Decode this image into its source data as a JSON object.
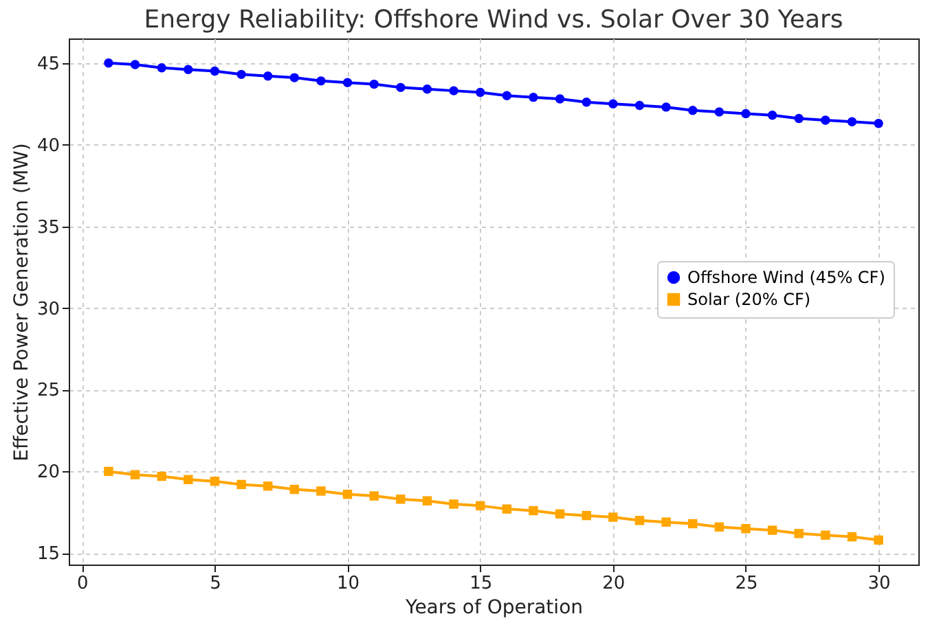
{
  "chart_data": {
    "type": "line",
    "title": "Energy Reliability: Offshore Wind vs. Solar Over 30 Years",
    "xlabel": "Years of Operation",
    "ylabel": "Effective Power Generation (MW)",
    "x": [
      1,
      2,
      3,
      4,
      5,
      6,
      7,
      8,
      9,
      10,
      11,
      12,
      13,
      14,
      15,
      16,
      17,
      18,
      19,
      20,
      21,
      22,
      23,
      24,
      25,
      26,
      27,
      28,
      29,
      30
    ],
    "series": [
      {
        "name": "Offshore Wind (45% CF)",
        "color": "#0000ff",
        "marker": "circle",
        "values": [
          45.0,
          44.9,
          44.7,
          44.6,
          44.5,
          44.3,
          44.2,
          44.1,
          43.9,
          43.8,
          43.7,
          43.5,
          43.4,
          43.3,
          43.2,
          43.0,
          42.9,
          42.8,
          42.6,
          42.5,
          42.4,
          42.3,
          42.1,
          42.0,
          41.9,
          41.8,
          41.6,
          41.5,
          41.4,
          41.3
        ]
      },
      {
        "name": "Solar (20% CF)",
        "color": "#ffa500",
        "marker": "square",
        "values": [
          20.0,
          19.8,
          19.7,
          19.5,
          19.4,
          19.2,
          19.1,
          18.9,
          18.8,
          18.6,
          18.5,
          18.3,
          18.2,
          18.0,
          17.9,
          17.7,
          17.6,
          17.4,
          17.3,
          17.2,
          17.0,
          16.9,
          16.8,
          16.6,
          16.5,
          16.4,
          16.2,
          16.1,
          16.0,
          15.8
        ]
      }
    ],
    "xlim": [
      -0.5,
      31.5
    ],
    "xticks": [
      0,
      5,
      10,
      15,
      20,
      25,
      30
    ],
    "ylim": [
      14.3,
      46.5
    ],
    "yticks": [
      15,
      20,
      25,
      30,
      35,
      40,
      45
    ],
    "grid": true,
    "legend": "right",
    "line_style": "solid"
  }
}
